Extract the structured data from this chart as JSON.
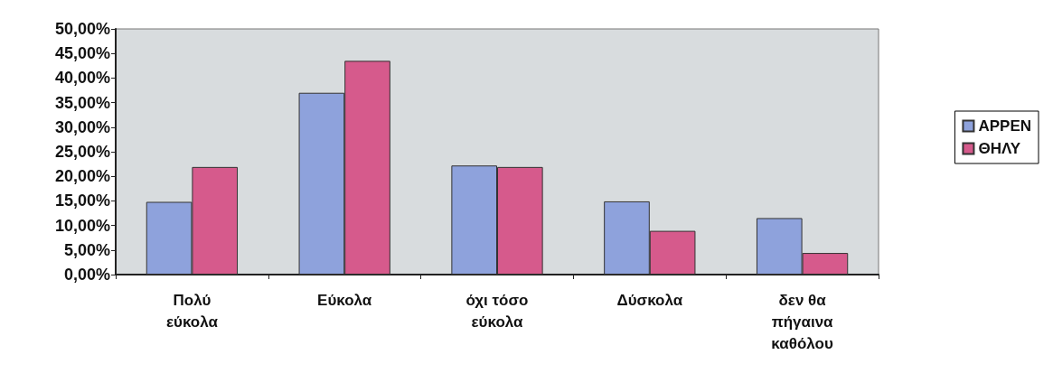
{
  "chart_data": {
    "type": "bar",
    "categories": [
      "Πολύ εύκολα",
      "Εύκολα",
      "όχι τόσο εύκολα",
      "Δύσκολα",
      "δεν θα πήγαινα καθόλου"
    ],
    "series": [
      {
        "name": "ΑΡΡΕΝ",
        "color": "#8ea2dc",
        "values": [
          14.8,
          37.0,
          22.2,
          14.9,
          11.5
        ]
      },
      {
        "name": "ΘΗΛΥ",
        "color": "#d65a8c",
        "values": [
          21.9,
          43.5,
          21.9,
          8.9,
          4.4
        ]
      }
    ],
    "ylim": [
      0,
      50
    ],
    "yticks": [
      {
        "value": 0,
        "label": "0,00%"
      },
      {
        "value": 5,
        "label": "5,00%"
      },
      {
        "value": 10,
        "label": "10,00%"
      },
      {
        "value": 15,
        "label": "15,00%"
      },
      {
        "value": 20,
        "label": "20,00%"
      },
      {
        "value": 25,
        "label": "25,00%"
      },
      {
        "value": 30,
        "label": "30,00%"
      },
      {
        "value": 35,
        "label": "35,00%"
      },
      {
        "value": 40,
        "label": "40,00%"
      },
      {
        "value": 45,
        "label": "45,00%"
      },
      {
        "value": 50,
        "label": "50,00%"
      }
    ],
    "grid": false,
    "legend": "right"
  }
}
